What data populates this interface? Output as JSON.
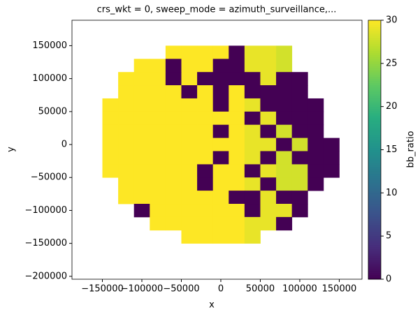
{
  "chart_data": {
    "type": "heatmap",
    "title": "crs_wkt = 0, sweep_mode = azimuth_surveillance,...",
    "x_label": "x",
    "y_label": "y",
    "colorbar_label": "bb_ratio",
    "colormap": "viridis",
    "x": [
      -140000,
      -120000,
      -100000,
      -80000,
      -60000,
      -40000,
      -20000,
      0,
      20000,
      40000,
      60000,
      80000,
      100000,
      120000,
      140000
    ],
    "y": [
      140000,
      120000,
      100000,
      80000,
      60000,
      40000,
      20000,
      0,
      -20000,
      -40000,
      -60000,
      -80000,
      -100000,
      -120000,
      -140000
    ],
    "values": [
      [
        null,
        null,
        null,
        null,
        30,
        30,
        30,
        30,
        0,
        29,
        29,
        28,
        null,
        null,
        null
      ],
      [
        null,
        null,
        30,
        30,
        0,
        30,
        30,
        0,
        0,
        29,
        29,
        28,
        null,
        null,
        null
      ],
      [
        null,
        30,
        30,
        30,
        0,
        30,
        0,
        0,
        0,
        0,
        29,
        0,
        0,
        null,
        null
      ],
      [
        null,
        30,
        30,
        30,
        30,
        0,
        30,
        0,
        30,
        0,
        0,
        0,
        0,
        null,
        null
      ],
      [
        30,
        30,
        30,
        30,
        30,
        30,
        30,
        0,
        30,
        29,
        0,
        0,
        0,
        0,
        null
      ],
      [
        30,
        30,
        30,
        30,
        30,
        30,
        30,
        30,
        30,
        0,
        29,
        0,
        0,
        0,
        null
      ],
      [
        30,
        30,
        30,
        30,
        30,
        30,
        30,
        0,
        30,
        29,
        0,
        28,
        0,
        0,
        null
      ],
      [
        30,
        30,
        30,
        30,
        30,
        30,
        30,
        30,
        30,
        29,
        29,
        0,
        28,
        0,
        0
      ],
      [
        30,
        30,
        30,
        30,
        30,
        30,
        30,
        0,
        30,
        29,
        0,
        28,
        0,
        0,
        0
      ],
      [
        30,
        30,
        30,
        30,
        30,
        30,
        0,
        30,
        30,
        0,
        29,
        28,
        28,
        0,
        0
      ],
      [
        null,
        30,
        30,
        30,
        30,
        30,
        0,
        30,
        30,
        29,
        0,
        28,
        28,
        0,
        null
      ],
      [
        null,
        30,
        30,
        30,
        30,
        30,
        30,
        30,
        0,
        0,
        29,
        0,
        0,
        null,
        null
      ],
      [
        null,
        null,
        0,
        30,
        30,
        30,
        30,
        30,
        30,
        0,
        29,
        29,
        0,
        null,
        null
      ],
      [
        null,
        null,
        null,
        30,
        30,
        30,
        30,
        30,
        30,
        29,
        29,
        0,
        null,
        null,
        null
      ],
      [
        null,
        null,
        null,
        null,
        null,
        30,
        30,
        30,
        30,
        29,
        null,
        null,
        null,
        null,
        null
      ]
    ],
    "xlim": [
      -188500,
      178800
    ],
    "ylim": [
      -204400,
      188600
    ],
    "xticks": [
      {
        "value": -150000,
        "label": "−150000"
      },
      {
        "value": -100000,
        "label": "−100000"
      },
      {
        "value": -50000,
        "label": "−50000"
      },
      0,
      50000,
      100000,
      150000
    ],
    "yticks": [
      {
        "value": -200000,
        "label": "−200000"
      },
      {
        "value": -150000,
        "label": "−150000"
      },
      {
        "value": -100000,
        "label": "−100000"
      },
      {
        "value": -50000,
        "label": "−50000"
      },
      0,
      50000,
      100000,
      150000
    ],
    "clim": [
      0,
      30
    ],
    "cticks": [
      0,
      5,
      10,
      15,
      20,
      25,
      30
    ]
  }
}
